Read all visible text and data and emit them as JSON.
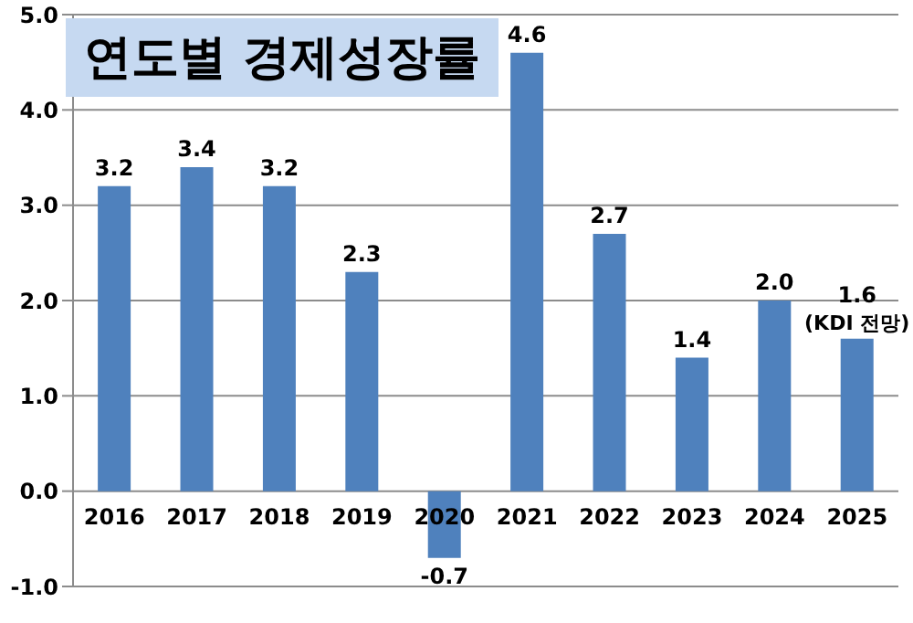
{
  "chart_data": {
    "type": "bar",
    "title": "연도별 경제성장률",
    "categories": [
      "2016",
      "2017",
      "2018",
      "2019",
      "2020",
      "2021",
      "2022",
      "2023",
      "2024",
      "2025"
    ],
    "values": [
      3.2,
      3.4,
      3.2,
      2.3,
      -0.7,
      4.6,
      2.7,
      1.4,
      2.0,
      1.6
    ],
    "value_labels": [
      "3.2",
      "3.4",
      "3.2",
      "2.3",
      "-0.7",
      "4.6",
      "2.7",
      "1.4",
      "2.0",
      "1.6"
    ],
    "color": "#4f81bd",
    "ylim": [
      -1,
      5
    ],
    "yticks": [
      {
        "value": -1,
        "label": "-1.0"
      },
      {
        "value": 0,
        "label": "0.0"
      },
      {
        "value": 1,
        "label": "1.0"
      },
      {
        "value": 2,
        "label": "2.0"
      },
      {
        "value": 3,
        "label": "3.0"
      },
      {
        "value": 4,
        "label": "4.0"
      },
      {
        "value": 5,
        "label": "5.0"
      }
    ],
    "grid": "y",
    "annotations": [
      {
        "text": "(KDI 전망)",
        "x": "2025",
        "y": 1.6
      }
    ]
  }
}
